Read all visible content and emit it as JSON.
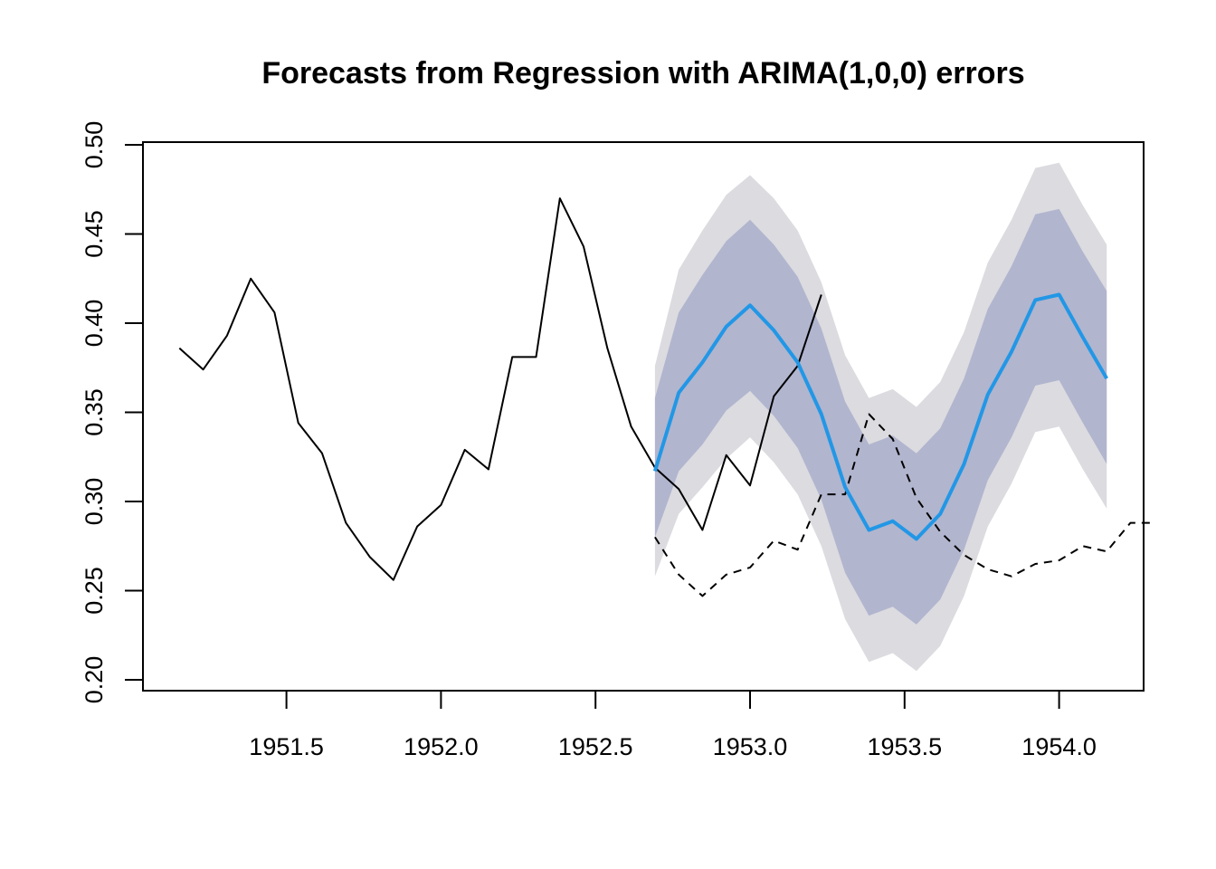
{
  "chart_data": {
    "type": "line",
    "title": "Forecasts from Regression with ARIMA(1,0,0) errors",
    "xlabel": "",
    "ylabel": "",
    "xlim": [
      1951.1,
      1954.275
    ],
    "ylim": [
      0.2,
      0.5
    ],
    "grid": false,
    "x_ticks": [
      1951.5,
      1952.0,
      1952.5,
      1953.0,
      1953.5,
      1954.0
    ],
    "x_tick_labels": [
      "1951.5",
      "1952.0",
      "1952.5",
      "1953.0",
      "1953.5",
      "1954.0"
    ],
    "y_ticks": [
      0.2,
      0.25,
      0.3,
      0.35,
      0.4,
      0.45,
      0.5
    ],
    "y_tick_labels": [
      "0.20",
      "0.25",
      "0.30",
      "0.35",
      "0.40",
      "0.45",
      "0.50"
    ],
    "frequency": 13,
    "colors": {
      "observed": "#000000",
      "test": "#000000",
      "regressor": "#000000",
      "forecast": "#2297e6",
      "band80": "#b1b5ce",
      "band95": "#dbdbe0",
      "axis": "#000000"
    },
    "series": [
      {
        "name": "observed",
        "style": "solid",
        "start": 1951.1538,
        "values": [
          0.386,
          0.374,
          0.393,
          0.425,
          0.406,
          0.344,
          0.327,
          0.288,
          0.269,
          0.256,
          0.286,
          0.298,
          0.329,
          0.318,
          0.381,
          0.381,
          0.47,
          0.443,
          0.386,
          0.342,
          0.319
        ]
      },
      {
        "name": "test",
        "style": "solid",
        "start": 1952.6923,
        "values": [
          0.319,
          0.307,
          0.284,
          0.326,
          0.309,
          0.359,
          0.376,
          0.416
        ]
      },
      {
        "name": "regressor",
        "style": "dashed",
        "start": 1952.6923,
        "values": [
          0.28,
          0.259,
          0.247,
          0.259,
          0.263,
          0.278,
          0.273,
          0.304,
          0.304,
          0.349,
          0.335,
          0.302,
          0.283,
          0.27,
          0.262,
          0.258,
          0.265,
          0.267,
          0.275,
          0.272,
          0.288,
          0.288
        ]
      },
      {
        "name": "forecast",
        "style": "solid",
        "start": 1952.6923,
        "values": [
          0.317,
          0.361,
          0.378,
          0.398,
          0.41,
          0.396,
          0.378,
          0.349,
          0.308,
          0.284,
          0.289,
          0.279,
          0.293,
          0.321,
          0.36,
          0.384,
          0.413,
          0.416,
          0.392,
          0.369
        ],
        "lower80": [
          0.28,
          0.317,
          0.332,
          0.351,
          0.362,
          0.348,
          0.33,
          0.301,
          0.26,
          0.236,
          0.241,
          0.231,
          0.245,
          0.273,
          0.312,
          0.336,
          0.365,
          0.368,
          0.344,
          0.321
        ],
        "upper80": [
          0.358,
          0.406,
          0.427,
          0.446,
          0.458,
          0.444,
          0.426,
          0.397,
          0.356,
          0.332,
          0.337,
          0.327,
          0.341,
          0.369,
          0.408,
          0.432,
          0.461,
          0.464,
          0.44,
          0.418
        ],
        "lower95": [
          0.258,
          0.293,
          0.308,
          0.324,
          0.336,
          0.322,
          0.304,
          0.275,
          0.234,
          0.21,
          0.215,
          0.205,
          0.219,
          0.247,
          0.286,
          0.31,
          0.339,
          0.342,
          0.318,
          0.296
        ],
        "upper95": [
          0.376,
          0.43,
          0.452,
          0.472,
          0.483,
          0.47,
          0.452,
          0.423,
          0.382,
          0.358,
          0.363,
          0.353,
          0.367,
          0.395,
          0.434,
          0.458,
          0.487,
          0.49,
          0.466,
          0.444
        ]
      }
    ]
  }
}
